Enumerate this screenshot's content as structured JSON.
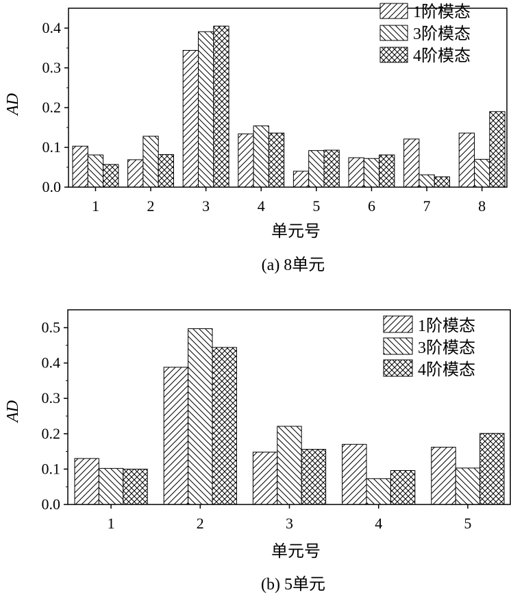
{
  "chart_data": [
    {
      "type": "bar",
      "categories": [
        "1",
        "2",
        "3",
        "4",
        "5",
        "6",
        "7",
        "8"
      ],
      "series": [
        {
          "name": "1阶模态",
          "pattern": "diag-right",
          "values": [
            0.103,
            0.069,
            0.344,
            0.134,
            0.04,
            0.074,
            0.121,
            0.136
          ]
        },
        {
          "name": "3阶模态",
          "pattern": "diag-left",
          "values": [
            0.081,
            0.128,
            0.391,
            0.154,
            0.092,
            0.072,
            0.031,
            0.07
          ]
        },
        {
          "name": "4阶模态",
          "pattern": "cross",
          "values": [
            0.057,
            0.082,
            0.405,
            0.136,
            0.093,
            0.081,
            0.026,
            0.19
          ]
        }
      ],
      "title": "",
      "xlabel": "单元号",
      "ylabel": "AD",
      "ylim": [
        0,
        0.45
      ],
      "yticks": [
        "0.0",
        "0.1",
        "0.2",
        "0.3",
        "0.4"
      ],
      "caption": "(a) 8单元",
      "legend": "top-right",
      "grid": false
    },
    {
      "type": "bar",
      "categories": [
        "1",
        "2",
        "3",
        "4",
        "5"
      ],
      "series": [
        {
          "name": "1阶模态",
          "pattern": "diag-right",
          "values": [
            0.13,
            0.388,
            0.148,
            0.17,
            0.162
          ]
        },
        {
          "name": "3阶模态",
          "pattern": "diag-left",
          "values": [
            0.102,
            0.497,
            0.221,
            0.073,
            0.103
          ]
        },
        {
          "name": "4阶模态",
          "pattern": "cross",
          "values": [
            0.1,
            0.444,
            0.156,
            0.096,
            0.201
          ]
        }
      ],
      "title": "",
      "xlabel": "单元号",
      "ylabel": "AD",
      "ylim": [
        0,
        0.55
      ],
      "yticks": [
        "0.0",
        "0.1",
        "0.2",
        "0.3",
        "0.4",
        "0.5"
      ],
      "caption": "(b) 5单元",
      "legend": "top-right",
      "grid": false
    }
  ]
}
